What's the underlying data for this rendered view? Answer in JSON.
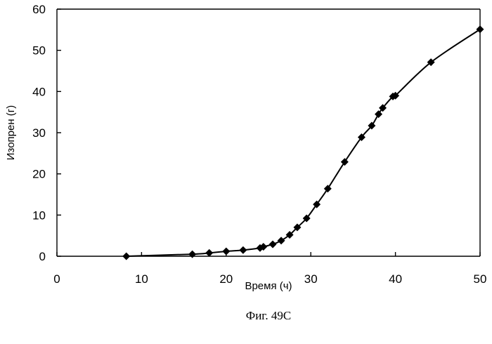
{
  "chart_data": {
    "type": "line",
    "xlabel": "Время (ч)",
    "ylabel": "Изопрен (г)",
    "caption": "Фиг. 49С",
    "xlim": [
      0,
      50
    ],
    "ylim": [
      0,
      60
    ],
    "xticks": [
      0,
      10,
      20,
      30,
      40,
      50
    ],
    "yticks": [
      0,
      10,
      20,
      30,
      40,
      50,
      60
    ],
    "grid": false,
    "legend": "none",
    "line_color": "#000000",
    "marker": "diamond",
    "series": [
      {
        "x": [
          8.2,
          16.0,
          18.0,
          20.0,
          22.0,
          24.0,
          24.4,
          25.5,
          26.5,
          27.5,
          28.4,
          29.5,
          30.7,
          32.0,
          34.0,
          36.0,
          37.2,
          38.0,
          38.5,
          39.7,
          40.0,
          44.2,
          50.0
        ],
        "values": [
          0.0,
          0.5,
          0.8,
          1.2,
          1.5,
          2.0,
          2.3,
          2.9,
          3.8,
          5.2,
          7.0,
          9.2,
          12.6,
          16.4,
          22.9,
          28.9,
          31.7,
          34.5,
          36.0,
          38.8,
          39.0,
          47.1,
          55.1
        ]
      }
    ]
  }
}
